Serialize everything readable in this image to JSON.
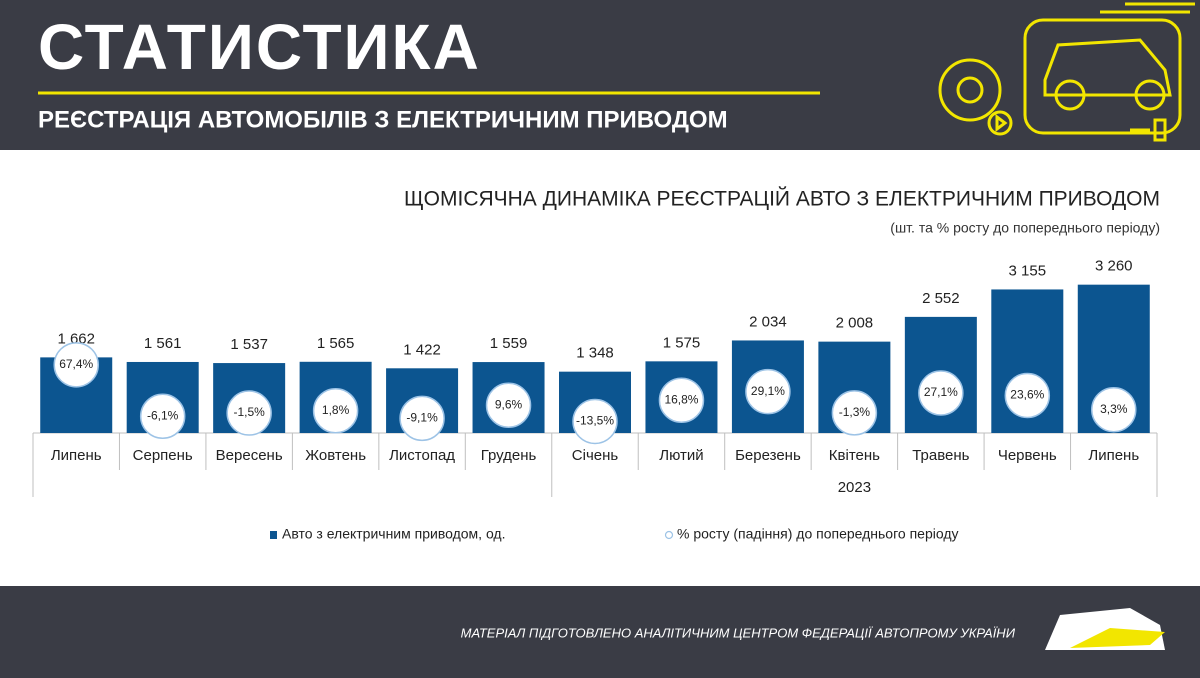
{
  "header": {
    "title": "СТАТИСТИКА",
    "subtitle": "РЕЄСТРАЦІЯ АВТОМОБІЛІВ З ЕЛЕКТРИЧНИМ ПРИВОДОМ"
  },
  "chart_data": {
    "type": "bar",
    "title": "ЩОМІСЯЧНА ДИНАМІКА РЕЄСТРАЦІЙ АВТО З ЕЛЕКТРИЧНИМ ПРИВОДОМ",
    "subtitle": "(шт. та % росту до попереднього періоду)",
    "categories": [
      "Липень",
      "Серпень",
      "Вересень",
      "Жовтень",
      "Листопад",
      "Грудень",
      "Січень",
      "Лютий",
      "Березень",
      "Квітень",
      "Травень",
      "Червень",
      "Липень"
    ],
    "category_groups": [
      null,
      null,
      null,
      null,
      null,
      null,
      "2023",
      "2023",
      "2023",
      "2023",
      "2023",
      "2023",
      "2023"
    ],
    "series": [
      {
        "name": "Авто з електричним приводом, од.",
        "color": "#0c5590",
        "values": [
          1662,
          1561,
          1537,
          1565,
          1422,
          1559,
          1348,
          1575,
          2034,
          2008,
          2552,
          3155,
          3260
        ],
        "value_labels": [
          "1 662",
          "1 561",
          "1 537",
          "1 565",
          "1 422",
          "1 559",
          "1 348",
          "1 575",
          "2 034",
          "2 008",
          "2 552",
          "3 155",
          "3 260"
        ]
      },
      {
        "name": "% росту (падіння) до попереднього періоду",
        "color": "#9dc3e6",
        "axis": "y2",
        "values": [
          67.4,
          -6.1,
          -1.5,
          1.8,
          -9.1,
          9.6,
          -13.5,
          16.8,
          29.1,
          -1.3,
          27.1,
          23.6,
          3.3
        ],
        "value_labels": [
          "67,4%",
          "-6,1%",
          "-1,5%",
          "1,8%",
          "-9,1%",
          "9,6%",
          "-13,5%",
          "16,8%",
          "29,1%",
          "-1,3%",
          "27,1%",
          "23,6%",
          "3,3%"
        ]
      }
    ],
    "ylim": [
      0,
      4000
    ],
    "y2lim": [
      -30,
      230
    ],
    "legend": "bottom"
  },
  "footer": {
    "text": "МАТЕРІАЛ ПІДГОТОВЛЕНО АНАЛІТИЧНИМ ЦЕНТРОМ ФЕДЕРАЦІЇ АВТОПРОМУ УКРАЇНИ"
  }
}
